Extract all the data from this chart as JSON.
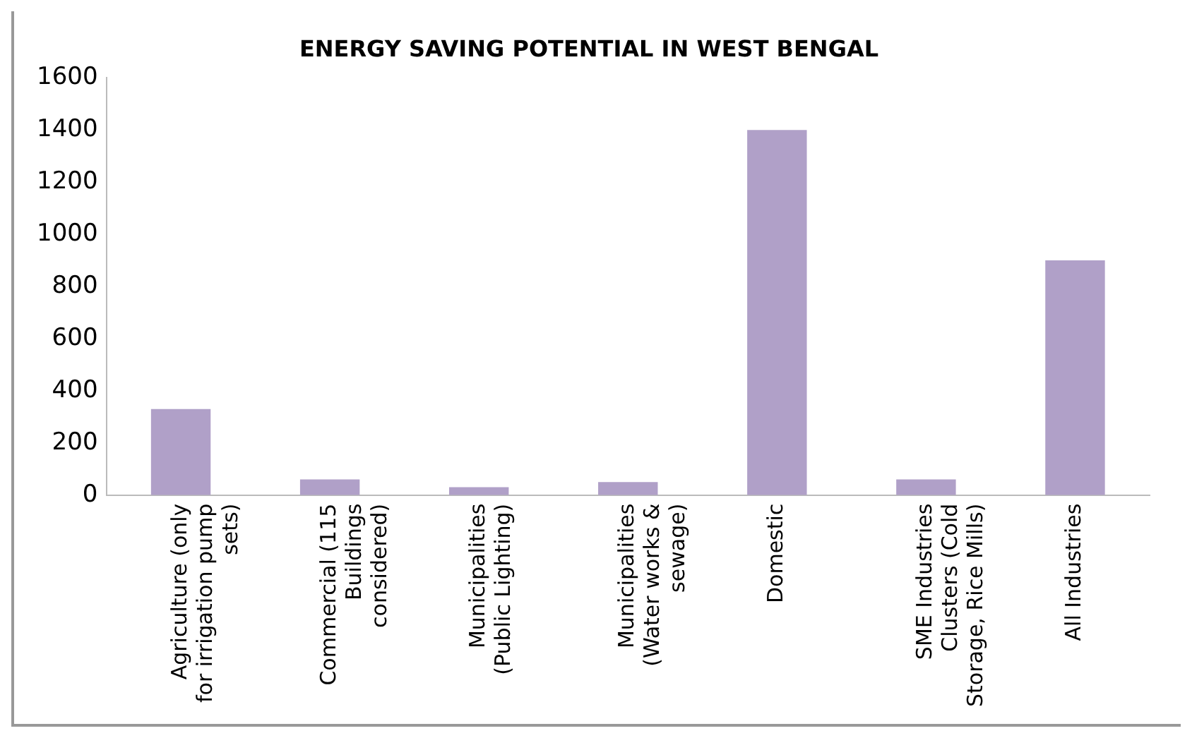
{
  "chart_data": {
    "type": "bar",
    "title": "ENERGY SAVING POTENTIAL IN WEST BENGAL",
    "categories": [
      "Agriculture (only for irrigation pump sets)",
      "Commercial (115 Buildings considered)",
      "Municipalities (Public Lighting)",
      "Municipalities (Water works & sewage)",
      "Domestic",
      "SME Industries Clusters (Cold Storage, Rice Mills)",
      "All Industries"
    ],
    "values": [
      330,
      60,
      30,
      50,
      1400,
      60,
      900
    ],
    "color": "#b0a0c8",
    "ylim": [
      0,
      1600
    ],
    "yticks": [
      0,
      200,
      400,
      600,
      800,
      1000,
      1200,
      1400,
      1600
    ],
    "grid": false
  }
}
